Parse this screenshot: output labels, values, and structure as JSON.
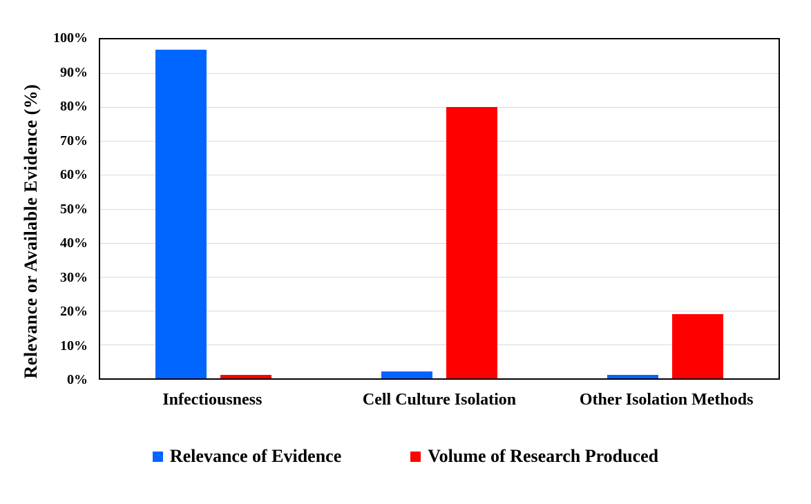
{
  "chart_data": {
    "type": "bar",
    "categories": [
      "Infectiousness",
      "Cell Culture Isolation",
      "Other Isolation Methods"
    ],
    "series": [
      {
        "name": "Relevance of Evidence",
        "color": "#0066FF",
        "values": [
          97,
          2,
          1
        ]
      },
      {
        "name": "Volume of Research Produced",
        "color": "#FF0000",
        "values": [
          1,
          80,
          19
        ]
      }
    ],
    "xlabel": "",
    "ylabel": "Relevance or Available Evidence (%)",
    "ylim": [
      0,
      100
    ],
    "ytick_step": 10,
    "ytick_suffix": "%",
    "grid": true,
    "gridline_color": "#D9D9D9",
    "axis_color": "#000000",
    "legend_position": "bottom"
  }
}
